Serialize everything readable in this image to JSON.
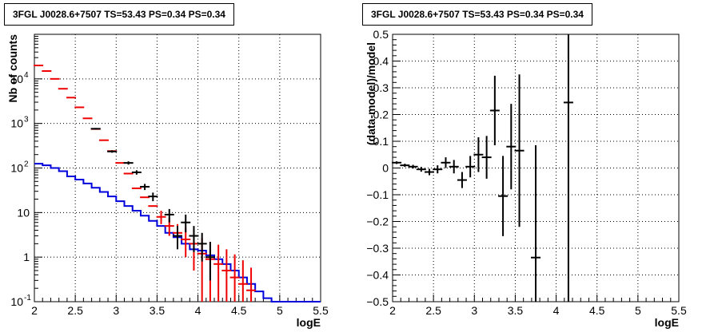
{
  "chart_data": [
    {
      "type": "scatter",
      "title": "3FGL J0028.6+7507 TS=53.43 PS=0.34 PS=0.34",
      "xlabel": "logE",
      "ylabel": "Nb of counts",
      "xlim": [
        2,
        5.5
      ],
      "ylim": [
        0.1,
        100000
      ],
      "yscale": "log",
      "grid": true,
      "x_ticks": [
        "2",
        "2.5",
        "3",
        "3.5",
        "4",
        "4.5",
        "5",
        "5.5"
      ],
      "y_ticks": [
        {
          "value": 0.1,
          "label": "10",
          "exp": "-1"
        },
        {
          "value": 1,
          "label": "1",
          "exp": ""
        },
        {
          "value": 10,
          "label": "10",
          "exp": ""
        },
        {
          "value": 100,
          "label": "10",
          "exp": "2"
        },
        {
          "value": 1000,
          "label": "10",
          "exp": "3"
        },
        {
          "value": 10000,
          "label": "10",
          "exp": "4"
        }
      ],
      "data_points": [
        {
          "x": 2.75,
          "y": 760,
          "yerr": [
            30,
            30
          ]
        },
        {
          "x": 2.95,
          "y": 235,
          "yerr": [
            15,
            15
          ]
        },
        {
          "x": 3.15,
          "y": 130,
          "yerr": [
            11,
            11
          ]
        },
        {
          "x": 3.25,
          "y": 80,
          "yerr": [
            9,
            9
          ]
        },
        {
          "x": 3.35,
          "y": 38,
          "yerr": [
            6,
            6
          ]
        },
        {
          "x": 3.45,
          "y": 23,
          "yerr": [
            5,
            5
          ]
        },
        {
          "x": 3.65,
          "y": 9,
          "yerr": [
            3,
            3
          ]
        },
        {
          "x": 3.75,
          "y": 3,
          "yerr": [
            1.5,
            2
          ]
        },
        {
          "x": 3.85,
          "y": 6,
          "yerr": [
            2.4,
            3
          ]
        },
        {
          "x": 3.95,
          "y": 3,
          "yerr": [
            1.7,
            2
          ]
        },
        {
          "x": 4.05,
          "y": 2,
          "yerr": [
            1.2,
            1.5
          ]
        },
        {
          "x": 4.15,
          "y": 1,
          "yerr": [
            0.7,
            1.2
          ]
        }
      ],
      "model_total": [
        {
          "x": 2.05,
          "y": 20000
        },
        {
          "x": 2.15,
          "y": 15000
        },
        {
          "x": 2.25,
          "y": 10000
        },
        {
          "x": 2.35,
          "y": 6000
        },
        {
          "x": 2.45,
          "y": 3800
        },
        {
          "x": 2.55,
          "y": 2300
        },
        {
          "x": 2.65,
          "y": 1300
        },
        {
          "x": 2.75,
          "y": 750
        },
        {
          "x": 2.85,
          "y": 420
        },
        {
          "x": 2.95,
          "y": 240
        },
        {
          "x": 3.05,
          "y": 130
        },
        {
          "x": 3.15,
          "y": 75
        },
        {
          "x": 3.25,
          "y": 35
        },
        {
          "x": 3.35,
          "y": 22
        },
        {
          "x": 3.45,
          "y": 14
        },
        {
          "x": 3.55,
          "y": 8,
          "yerr": [
            2.5,
            3
          ]
        },
        {
          "x": 3.65,
          "y": 5,
          "yerr": [
            2,
            2.5
          ]
        },
        {
          "x": 3.75,
          "y": 3.5,
          "yerr": [
            1.5,
            2
          ]
        },
        {
          "x": 3.85,
          "y": 2.5,
          "yerr": [
            1.5,
            2
          ]
        },
        {
          "x": 3.95,
          "y": 2,
          "yerr": [
            1.5,
            2
          ]
        },
        {
          "x": 4.05,
          "y": 1.2,
          "yerr": [
            1.1,
            1.5
          ]
        },
        {
          "x": 4.15,
          "y": 0.9,
          "yerr": [
            0.8,
            1.3
          ]
        },
        {
          "x": 4.25,
          "y": 0.7,
          "yerr": [
            0.6,
            1.2
          ]
        },
        {
          "x": 4.35,
          "y": 0.5,
          "yerr": [
            0.4,
            1
          ]
        },
        {
          "x": 4.45,
          "y": 0.35,
          "yerr": [
            0.25,
            0.8
          ]
        },
        {
          "x": 4.55,
          "y": 0.25,
          "yerr": [
            0.15,
            0.6
          ]
        },
        {
          "x": 4.65,
          "y": 0.18,
          "yerr": [
            0.08,
            0.4
          ]
        }
      ],
      "model_component": {
        "edges": [
          2.0,
          2.1,
          2.2,
          2.3,
          2.4,
          2.5,
          2.6,
          2.7,
          2.8,
          2.9,
          3.0,
          3.1,
          3.2,
          3.3,
          3.4,
          3.5,
          3.6,
          3.7,
          3.8,
          3.9,
          4.0,
          4.1,
          4.2,
          4.3,
          4.4,
          4.5,
          4.6,
          4.7,
          4.8,
          4.9,
          5.0,
          5.5
        ],
        "values": [
          125,
          115,
          100,
          85,
          65,
          55,
          45,
          36,
          29,
          23,
          18,
          14,
          11,
          8.5,
          6.5,
          5,
          3.5,
          2.8,
          2,
          1.5,
          1.4,
          1.1,
          0.9,
          0.7,
          0.5,
          0.35,
          0.25,
          0.17,
          0.12,
          0.1,
          0.1
        ]
      },
      "colors": {
        "data": "#000000",
        "model_total": "#ee0000",
        "model_component": "#0000dd"
      }
    },
    {
      "type": "scatter",
      "title": "3FGL J0028.6+7507 TS=53.43 PS=0.34 PS=0.34",
      "xlabel": "logE",
      "ylabel": "(data-model)/model",
      "xlim": [
        2,
        5.5
      ],
      "ylim": [
        -0.5,
        0.5
      ],
      "yscale": "linear",
      "grid": true,
      "x_ticks": [
        "2",
        "2.5",
        "3",
        "3.5",
        "4",
        "4.5",
        "5",
        "5.5"
      ],
      "y_ticks": [
        "−0.5",
        "−0.4",
        "−0.3",
        "−0.2",
        "−0.1",
        "0",
        "0.1",
        "0.2",
        "0.3",
        "0.4",
        "0.5"
      ],
      "points": [
        {
          "x": 2.05,
          "y": 0.02,
          "yerr": 0.005
        },
        {
          "x": 2.15,
          "y": 0.01,
          "yerr": 0.006
        },
        {
          "x": 2.25,
          "y": 0.005,
          "yerr": 0.007
        },
        {
          "x": 2.35,
          "y": -0.005,
          "yerr": 0.009
        },
        {
          "x": 2.45,
          "y": -0.015,
          "yerr": 0.012
        },
        {
          "x": 2.55,
          "y": -0.005,
          "yerr": 0.015
        },
        {
          "x": 2.65,
          "y": 0.02,
          "yerr": 0.02
        },
        {
          "x": 2.75,
          "y": 0.005,
          "yerr": 0.025
        },
        {
          "x": 2.85,
          "y": -0.045,
          "yerr": 0.03
        },
        {
          "x": 2.95,
          "y": 0.005,
          "yerr": 0.04
        },
        {
          "x": 3.05,
          "y": 0.05,
          "yerr": 0.065
        },
        {
          "x": 3.15,
          "y": 0.04,
          "yerr": 0.08
        },
        {
          "x": 3.25,
          "y": 0.215,
          "yerr": 0.13
        },
        {
          "x": 3.35,
          "y": -0.105,
          "yerr": 0.15
        },
        {
          "x": 3.45,
          "y": 0.08,
          "yerr": 0.16
        },
        {
          "x": 3.55,
          "y": 0.065,
          "yerr": 0.285
        },
        {
          "x": 3.75,
          "y": -0.335,
          "yerr": 0.42
        },
        {
          "x": 4.15,
          "y": 0.245,
          "yerr": 0.75
        }
      ]
    }
  ]
}
